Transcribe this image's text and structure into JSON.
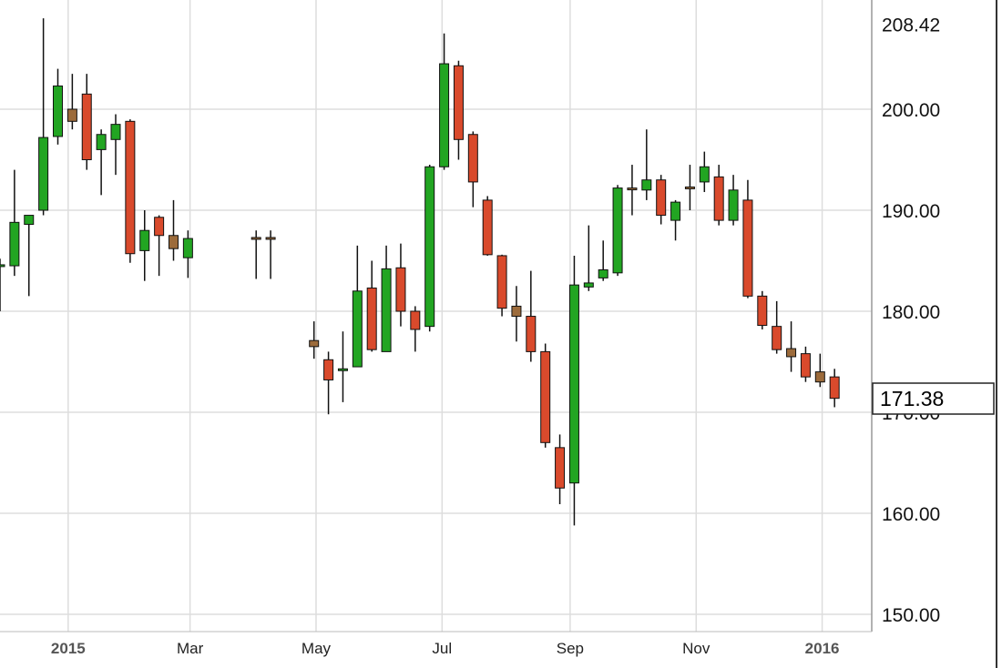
{
  "chart_data": {
    "type": "candlestick",
    "title": "",
    "xlabel": "",
    "ylabel": "",
    "ylim": [
      147,
      210
    ],
    "grid": true,
    "colors": {
      "up": "#22a522",
      "down": "#d94a2c",
      "neutral": "#9c6b3b",
      "grid": "#dddddd"
    },
    "y_ticks": [
      {
        "value": 150,
        "label": "150.00"
      },
      {
        "value": 160,
        "label": "160.00"
      },
      {
        "value": 170,
        "label": "170.00"
      },
      {
        "value": 180,
        "label": "180.00"
      },
      {
        "value": 190,
        "label": "190.00"
      },
      {
        "value": 200,
        "label": "200.00"
      },
      {
        "value": 208.42,
        "label": "208.42"
      }
    ],
    "x_ticks": [
      {
        "date": "2015-01-01",
        "label": "2015",
        "bold": true
      },
      {
        "date": "2015-03-01",
        "label": "Mar",
        "bold": false
      },
      {
        "date": "2015-05-01",
        "label": "May",
        "bold": false
      },
      {
        "date": "2015-07-01",
        "label": "Jul",
        "bold": false
      },
      {
        "date": "2015-09-01",
        "label": "Sep",
        "bold": false
      },
      {
        "date": "2015-11-01",
        "label": "Nov",
        "bold": false
      },
      {
        "date": "2016-01-01",
        "label": "2016",
        "bold": true
      }
    ],
    "x_range": [
      "2014-11-29",
      "2016-01-25"
    ],
    "last_price": {
      "value": 171.38,
      "label": "171.38"
    },
    "candles": [
      {
        "date": "2014-11-29",
        "open": 184.5,
        "high": 185.2,
        "low": 180.0,
        "close": 184.6,
        "color": "up"
      },
      {
        "date": "2014-12-06",
        "open": 184.5,
        "high": 194.0,
        "low": 183.5,
        "close": 188.8,
        "color": "up"
      },
      {
        "date": "2014-12-13",
        "open": 188.6,
        "high": 189.5,
        "low": 181.5,
        "close": 189.5,
        "color": "up"
      },
      {
        "date": "2014-12-20",
        "open": 190.0,
        "high": 209.0,
        "low": 189.5,
        "close": 197.2,
        "color": "up"
      },
      {
        "date": "2014-12-27",
        "open": 197.3,
        "high": 204.0,
        "low": 196.5,
        "close": 202.3,
        "color": "up"
      },
      {
        "date": "2015-01-03",
        "open": 200.0,
        "high": 203.5,
        "low": 198.0,
        "close": 198.8,
        "color": "neutral"
      },
      {
        "date": "2015-01-10",
        "open": 201.5,
        "high": 203.5,
        "low": 194.0,
        "close": 195.0,
        "color": "down"
      },
      {
        "date": "2015-01-17",
        "open": 196.0,
        "high": 198.0,
        "low": 191.5,
        "close": 197.5,
        "color": "up"
      },
      {
        "date": "2015-01-24",
        "open": 197.0,
        "high": 199.5,
        "low": 193.5,
        "close": 198.5,
        "color": "up"
      },
      {
        "date": "2015-01-31",
        "open": 198.8,
        "high": 199.0,
        "low": 184.8,
        "close": 185.7,
        "color": "down"
      },
      {
        "date": "2015-02-07",
        "open": 186.0,
        "high": 190.0,
        "low": 183.0,
        "close": 188.0,
        "color": "up"
      },
      {
        "date": "2015-02-14",
        "open": 187.5,
        "high": 189.5,
        "low": 183.5,
        "close": 189.3,
        "color": "down"
      },
      {
        "date": "2015-02-21",
        "open": 187.5,
        "high": 191.0,
        "low": 185.0,
        "close": 186.2,
        "color": "neutral"
      },
      {
        "date": "2015-02-28",
        "open": 185.3,
        "high": 188.0,
        "low": 183.3,
        "close": 187.2,
        "color": "up"
      },
      {
        "date": "2015-04-02",
        "open": 187.3,
        "high": 188.0,
        "low": 183.2,
        "close": 187.2,
        "color": "neutral"
      },
      {
        "date": "2015-04-09",
        "open": 187.3,
        "high": 188.0,
        "low": 183.2,
        "close": 187.2,
        "color": "neutral"
      },
      {
        "date": "2015-04-30",
        "open": 176.5,
        "high": 179.0,
        "low": 175.3,
        "close": 177.1,
        "color": "neutral"
      },
      {
        "date": "2015-05-07",
        "open": 175.2,
        "high": 176.0,
        "low": 169.8,
        "close": 173.2,
        "color": "down"
      },
      {
        "date": "2015-05-14",
        "open": 174.2,
        "high": 178.0,
        "low": 171.0,
        "close": 174.3,
        "color": "up"
      },
      {
        "date": "2015-05-21",
        "open": 174.5,
        "high": 186.5,
        "low": 174.5,
        "close": 182.0,
        "color": "up"
      },
      {
        "date": "2015-05-28",
        "open": 182.3,
        "high": 185.0,
        "low": 176.0,
        "close": 176.2,
        "color": "down"
      },
      {
        "date": "2015-06-04",
        "open": 176.0,
        "high": 186.5,
        "low": 176.0,
        "close": 184.2,
        "color": "up"
      },
      {
        "date": "2015-06-11",
        "open": 184.3,
        "high": 186.7,
        "low": 178.5,
        "close": 180.0,
        "color": "down"
      },
      {
        "date": "2015-06-18",
        "open": 180.0,
        "high": 180.5,
        "low": 176.0,
        "close": 178.2,
        "color": "down"
      },
      {
        "date": "2015-06-25",
        "open": 178.5,
        "high": 194.5,
        "low": 178.0,
        "close": 194.3,
        "color": "up"
      },
      {
        "date": "2015-07-02",
        "open": 194.3,
        "high": 207.5,
        "low": 194.0,
        "close": 204.5,
        "color": "up"
      },
      {
        "date": "2015-07-09",
        "open": 204.3,
        "high": 204.8,
        "low": 195.0,
        "close": 197.0,
        "color": "down"
      },
      {
        "date": "2015-07-16",
        "open": 197.5,
        "high": 197.8,
        "low": 190.3,
        "close": 192.8,
        "color": "down"
      },
      {
        "date": "2015-07-23",
        "open": 191.0,
        "high": 191.4,
        "low": 185.5,
        "close": 185.6,
        "color": "down"
      },
      {
        "date": "2015-07-30",
        "open": 185.5,
        "high": 185.6,
        "low": 179.5,
        "close": 180.3,
        "color": "down"
      },
      {
        "date": "2015-08-06",
        "open": 180.5,
        "high": 182.5,
        "low": 177.0,
        "close": 179.5,
        "color": "neutral"
      },
      {
        "date": "2015-08-13",
        "open": 179.5,
        "high": 184.0,
        "low": 175.0,
        "close": 176.0,
        "color": "down"
      },
      {
        "date": "2015-08-20",
        "open": 176.0,
        "high": 176.8,
        "low": 166.5,
        "close": 167.0,
        "color": "down"
      },
      {
        "date": "2015-08-27",
        "open": 166.5,
        "high": 167.8,
        "low": 160.9,
        "close": 162.5,
        "color": "down"
      },
      {
        "date": "2015-09-03",
        "open": 163.0,
        "high": 185.5,
        "low": 158.8,
        "close": 182.6,
        "color": "up"
      },
      {
        "date": "2015-09-10",
        "open": 182.4,
        "high": 188.5,
        "low": 182.0,
        "close": 182.8,
        "color": "up"
      },
      {
        "date": "2015-09-17",
        "open": 183.3,
        "high": 187.0,
        "low": 183.0,
        "close": 184.1,
        "color": "up"
      },
      {
        "date": "2015-09-24",
        "open": 183.8,
        "high": 192.5,
        "low": 183.5,
        "close": 192.2,
        "color": "up"
      },
      {
        "date": "2015-10-01",
        "open": 192.2,
        "high": 194.5,
        "low": 189.5,
        "close": 192.2,
        "color": "neutral"
      },
      {
        "date": "2015-10-08",
        "open": 192.0,
        "high": 198.0,
        "low": 191.0,
        "close": 193.0,
        "color": "up"
      },
      {
        "date": "2015-10-15",
        "open": 193.0,
        "high": 193.5,
        "low": 188.6,
        "close": 189.5,
        "color": "down"
      },
      {
        "date": "2015-10-22",
        "open": 189.0,
        "high": 191.0,
        "low": 187.0,
        "close": 190.8,
        "color": "up"
      },
      {
        "date": "2015-10-29",
        "open": 192.3,
        "high": 194.5,
        "low": 190.0,
        "close": 192.3,
        "color": "neutral"
      },
      {
        "date": "2015-11-05",
        "open": 192.8,
        "high": 195.8,
        "low": 191.8,
        "close": 194.3,
        "color": "up"
      },
      {
        "date": "2015-11-12",
        "open": 193.3,
        "high": 194.5,
        "low": 188.5,
        "close": 189.0,
        "color": "down"
      },
      {
        "date": "2015-11-19",
        "open": 189.0,
        "high": 193.5,
        "low": 188.5,
        "close": 192.0,
        "color": "up"
      },
      {
        "date": "2015-11-26",
        "open": 191.0,
        "high": 193.0,
        "low": 181.3,
        "close": 181.5,
        "color": "down"
      },
      {
        "date": "2015-12-03",
        "open": 181.5,
        "high": 182.0,
        "low": 178.2,
        "close": 178.6,
        "color": "down"
      },
      {
        "date": "2015-12-10",
        "open": 178.5,
        "high": 181.0,
        "low": 175.8,
        "close": 176.2,
        "color": "down"
      },
      {
        "date": "2015-12-17",
        "open": 176.3,
        "high": 179.0,
        "low": 174.0,
        "close": 175.5,
        "color": "neutral"
      },
      {
        "date": "2015-12-24",
        "open": 175.8,
        "high": 176.5,
        "low": 173.0,
        "close": 173.5,
        "color": "down"
      },
      {
        "date": "2015-12-31",
        "open": 174.0,
        "high": 175.8,
        "low": 172.5,
        "close": 173.0,
        "color": "neutral"
      },
      {
        "date": "2016-01-07",
        "open": 173.5,
        "high": 174.3,
        "low": 170.5,
        "close": 171.38,
        "color": "down"
      }
    ]
  }
}
